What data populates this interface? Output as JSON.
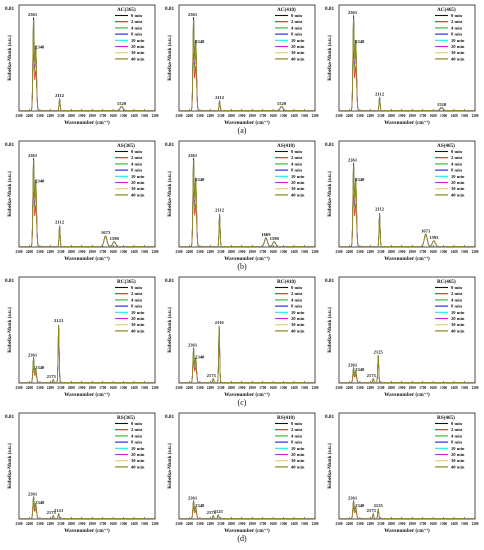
{
  "figure": {
    "panels": [
      {
        "label": "(a)",
        "charts": [
          {
            "id": "AC365",
            "title": "AC(365)",
            "peak_labels": [
              "2361",
              "2340",
              "2112",
              "1520"
            ],
            "peaks": [
              {
                "x": 2361,
                "y": 0.95,
                "label": "2361"
              },
              {
                "x": 2340,
                "y": 0.66,
                "label": "2340"
              },
              {
                "x": 2112,
                "y": 0.12,
                "label": "2112"
              },
              {
                "x": 1520,
                "y": 0.04,
                "label": "1520"
              }
            ]
          },
          {
            "id": "AC410",
            "title": "AC(410)",
            "peak_labels": [
              "2361",
              "2340",
              "2112",
              "1520"
            ],
            "peaks": [
              {
                "x": 2361,
                "y": 0.95,
                "label": "2361"
              },
              {
                "x": 2340,
                "y": 0.72,
                "label": "2340"
              },
              {
                "x": 2112,
                "y": 0.1,
                "label": "2112"
              },
              {
                "x": 1520,
                "y": 0.04,
                "label": "1520"
              }
            ]
          },
          {
            "id": "AC465",
            "title": "AC(465)",
            "peak_labels": [
              "2361",
              "2340",
              "2112",
              "1520"
            ],
            "peaks": [
              {
                "x": 2361,
                "y": 0.97,
                "label": "2361"
              },
              {
                "x": 2340,
                "y": 0.72,
                "label": "2340"
              },
              {
                "x": 2112,
                "y": 0.14,
                "label": "2112"
              },
              {
                "x": 1520,
                "y": 0.03,
                "label": "1520"
              }
            ]
          }
        ]
      },
      {
        "label": "(b)",
        "charts": [
          {
            "id": "AS365",
            "title": "AS(365)",
            "peak_labels": [
              "2361",
              "2340",
              "2112",
              "1673",
              "1590"
            ],
            "peaks": [
              {
                "x": 2361,
                "y": 0.9,
                "label": "2361"
              },
              {
                "x": 2340,
                "y": 0.68,
                "label": "2340"
              },
              {
                "x": 2112,
                "y": 0.22,
                "label": "2112"
              },
              {
                "x": 1673,
                "y": 0.11,
                "label": "1673"
              },
              {
                "x": 1590,
                "y": 0.05,
                "label": "1590"
              }
            ]
          },
          {
            "id": "AS410",
            "title": "AS(410)",
            "peak_labels": [
              "2361",
              "2340",
              "2112",
              "1669",
              "1590"
            ],
            "peaks": [
              {
                "x": 2361,
                "y": 0.9,
                "label": "2361"
              },
              {
                "x": 2340,
                "y": 0.7,
                "label": "2340"
              },
              {
                "x": 2112,
                "y": 0.34,
                "label": "2112"
              },
              {
                "x": 1669,
                "y": 0.09,
                "label": "1669"
              },
              {
                "x": 1590,
                "y": 0.05,
                "label": "1590"
              }
            ]
          },
          {
            "id": "AS465",
            "title": "AS(465)",
            "peak_labels": [
              "2361",
              "2340",
              "2112",
              "1671",
              "1593"
            ],
            "peaks": [
              {
                "x": 2361,
                "y": 0.85,
                "label": "2361"
              },
              {
                "x": 2340,
                "y": 0.7,
                "label": "2340"
              },
              {
                "x": 2112,
                "y": 0.35,
                "label": "2112"
              },
              {
                "x": 1671,
                "y": 0.13,
                "label": "1671"
              },
              {
                "x": 1593,
                "y": 0.06,
                "label": "1593"
              }
            ]
          }
        ]
      },
      {
        "label": "(c)",
        "charts": [
          {
            "id": "RC365",
            "title": "RC(365)",
            "peak_labels": [
              "2361",
              "2340",
              "2173",
              "2121"
            ],
            "peaks": [
              {
                "x": 2361,
                "y": 0.25,
                "label": "2361"
              },
              {
                "x": 2340,
                "y": 0.14,
                "label": "2340"
              },
              {
                "x": 2173,
                "y": 0.03,
                "label": "2173"
              },
              {
                "x": 2121,
                "y": 0.6,
                "label": "2121"
              }
            ]
          },
          {
            "id": "RC410",
            "title": "RC(410)",
            "peak_labels": [
              "2361",
              "2340",
              "2173",
              "2116"
            ],
            "peaks": [
              {
                "x": 2361,
                "y": 0.35,
                "label": "2361"
              },
              {
                "x": 2340,
                "y": 0.25,
                "label": "2340"
              },
              {
                "x": 2173,
                "y": 0.04,
                "label": "2173"
              },
              {
                "x": 2116,
                "y": 0.58,
                "label": "2116"
              }
            ]
          },
          {
            "id": "RC465",
            "title": "RC(465)",
            "peak_labels": [
              "2361",
              "2340",
              "2173",
              "2125"
            ],
            "peaks": [
              {
                "x": 2361,
                "y": 0.15,
                "label": "2361"
              },
              {
                "x": 2340,
                "y": 0.12,
                "label": "2340"
              },
              {
                "x": 2173,
                "y": 0.04,
                "label": "2173"
              },
              {
                "x": 2125,
                "y": 0.28,
                "label": "2125"
              }
            ]
          }
        ]
      },
      {
        "label": "(d)",
        "charts": [
          {
            "id": "RS365",
            "title": "RS(365)",
            "peak_labels": [
              "2361",
              "2340",
              "2173",
              "2121"
            ],
            "peaks": [
              {
                "x": 2361,
                "y": 0.22,
                "label": "2361"
              },
              {
                "x": 2340,
                "y": 0.15,
                "label": "2340"
              },
              {
                "x": 2173,
                "y": 0.03,
                "label": "2173"
              },
              {
                "x": 2121,
                "y": 0.05,
                "label": "2121"
              }
            ]
          },
          {
            "id": "RS410",
            "title": "RS(410)",
            "peak_labels": [
              "2361",
              "2340",
              "2173",
              "2125"
            ],
            "peaks": [
              {
                "x": 2361,
                "y": 0.18,
                "label": "2361"
              },
              {
                "x": 2340,
                "y": 0.12,
                "label": "2340"
              },
              {
                "x": 2173,
                "y": 0.03,
                "label": "2173"
              },
              {
                "x": 2125,
                "y": 0.04,
                "label": "2125"
              }
            ]
          },
          {
            "id": "RS465",
            "title": "RS(465)",
            "peak_labels": [
              "2361",
              "2340",
              "2173",
              "2125"
            ],
            "peaks": [
              {
                "x": 2361,
                "y": 0.18,
                "label": "2361"
              },
              {
                "x": 2340,
                "y": 0.12,
                "label": "2340"
              },
              {
                "x": 2173,
                "y": 0.05,
                "label": "2173"
              },
              {
                "x": 2125,
                "y": 0.1,
                "label": "2125"
              }
            ]
          }
        ]
      }
    ]
  },
  "chart_data": {
    "type": "line",
    "xlabel": "Wavenumber (cm⁻¹)",
    "ylabel": "Kubelka-Munk (a.u.)",
    "y_tick": "0.01",
    "x_ticks": [
      2500,
      2400,
      2300,
      2200,
      2100,
      2000,
      1900,
      1800,
      1700,
      1600,
      1500,
      1400,
      1300,
      1200
    ],
    "x_range": [
      2500,
      1200
    ],
    "series": [
      {
        "name": "0 min",
        "color": "#111111"
      },
      {
        "name": "2 min",
        "color": "#e8141b"
      },
      {
        "name": "4 min",
        "color": "#22bb22"
      },
      {
        "name": "8 min",
        "color": "#1a1aee"
      },
      {
        "name": "10 min",
        "color": "#17e6e6"
      },
      {
        "name": "20 min",
        "color": "#e617e6"
      },
      {
        "name": "30 min",
        "color": "#e6c76a"
      },
      {
        "name": "40 min",
        "color": "#808000"
      }
    ]
  }
}
